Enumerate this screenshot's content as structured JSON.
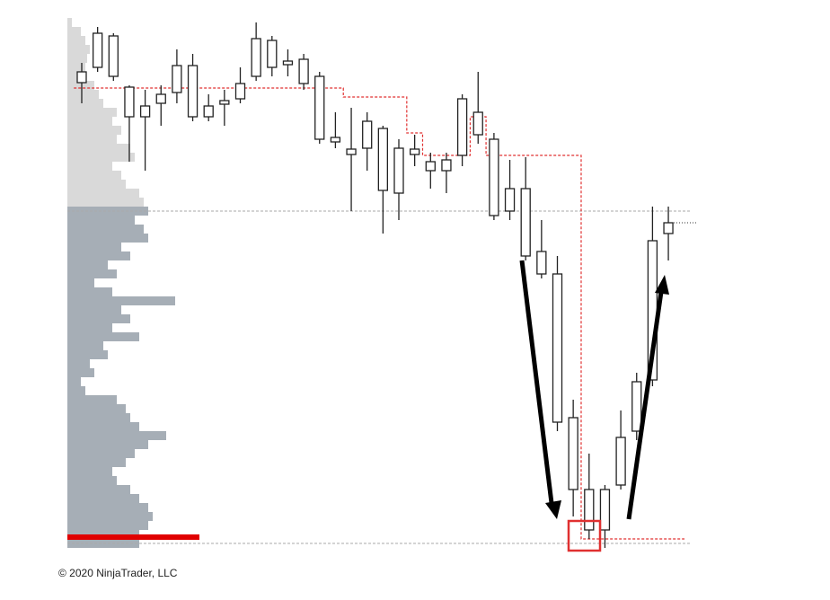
{
  "chart_data": {
    "type": "candlestick",
    "footer": "© 2020 NinjaTrader, LLC",
    "ylim": [
      0,
      600
    ],
    "open": [
      528,
      545,
      535,
      490,
      490,
      505,
      517,
      490,
      490,
      504,
      510,
      535,
      545,
      548,
      527,
      465,
      462,
      448,
      455,
      408,
      405,
      448,
      430,
      430,
      447,
      470,
      380,
      385,
      335,
      315,
      150,
      75,
      30,
      30,
      80,
      140,
      197,
      360
    ],
    "high": [
      550,
      590,
      583,
      525,
      520,
      525,
      565,
      560,
      515,
      520,
      545,
      595,
      580,
      565,
      560,
      540,
      495,
      500,
      495,
      480,
      465,
      470,
      450,
      450,
      515,
      540,
      472,
      442,
      445,
      375,
      335,
      175,
      115,
      80,
      163,
      205,
      390,
      390
    ],
    "low": [
      505,
      540,
      530,
      440,
      430,
      480,
      505,
      485,
      485,
      480,
      505,
      530,
      535,
      535,
      520,
      460,
      455,
      385,
      430,
      360,
      375,
      435,
      410,
      405,
      435,
      460,
      375,
      375,
      330,
      310,
      140,
      45,
      20,
      10,
      75,
      130,
      190,
      330
    ],
    "close": [
      540,
      583,
      580,
      523,
      502,
      515,
      547,
      547,
      502,
      508,
      527,
      577,
      575,
      552,
      554,
      535,
      467,
      454,
      485,
      477,
      455,
      454,
      440,
      442,
      510,
      495,
      465,
      410,
      410,
      340,
      315,
      155,
      75,
      75,
      133,
      195,
      352,
      372
    ],
    "poc_line": [
      522,
      522,
      522,
      522,
      522,
      522,
      522,
      522,
      522,
      522,
      522,
      522,
      522,
      522,
      522,
      522,
      522,
      512,
      512,
      512,
      512,
      472,
      447,
      447,
      447,
      490,
      447,
      447,
      447,
      447,
      447,
      447,
      20,
      20,
      20,
      20,
      20,
      20
    ],
    "value_area_high": 385,
    "value_area_low": 15,
    "last_price": 372,
    "profile": {
      "levels": [
        595,
        585,
        575,
        565,
        555,
        545,
        535,
        525,
        515,
        505,
        495,
        485,
        475,
        465,
        455,
        445,
        435,
        425,
        415,
        405,
        395,
        385,
        375,
        365,
        355,
        345,
        335,
        325,
        315,
        305,
        295,
        285,
        275,
        265,
        255,
        245,
        235,
        225,
        215,
        205,
        195,
        185,
        175,
        165,
        155,
        145,
        135,
        125,
        115,
        105,
        95,
        85,
        75,
        65,
        55,
        45,
        35,
        25,
        15
      ],
      "volumes": [
        5,
        15,
        20,
        25,
        22,
        20,
        15,
        30,
        35,
        40,
        55,
        50,
        60,
        55,
        70,
        75,
        50,
        60,
        65,
        80,
        85,
        90,
        75,
        85,
        90,
        60,
        70,
        45,
        55,
        30,
        50,
        120,
        60,
        70,
        50,
        80,
        40,
        45,
        25,
        30,
        15,
        20,
        55,
        65,
        70,
        80,
        110,
        90,
        75,
        65,
        50,
        55,
        70,
        80,
        90,
        95,
        90,
        80,
        80
      ],
      "split_level": 385,
      "upper_color": "#d9d9d9",
      "lower_color": "#a6aeb6"
    },
    "poc_level": 22,
    "poc_volume": 147,
    "poc_color": "#e00000"
  }
}
